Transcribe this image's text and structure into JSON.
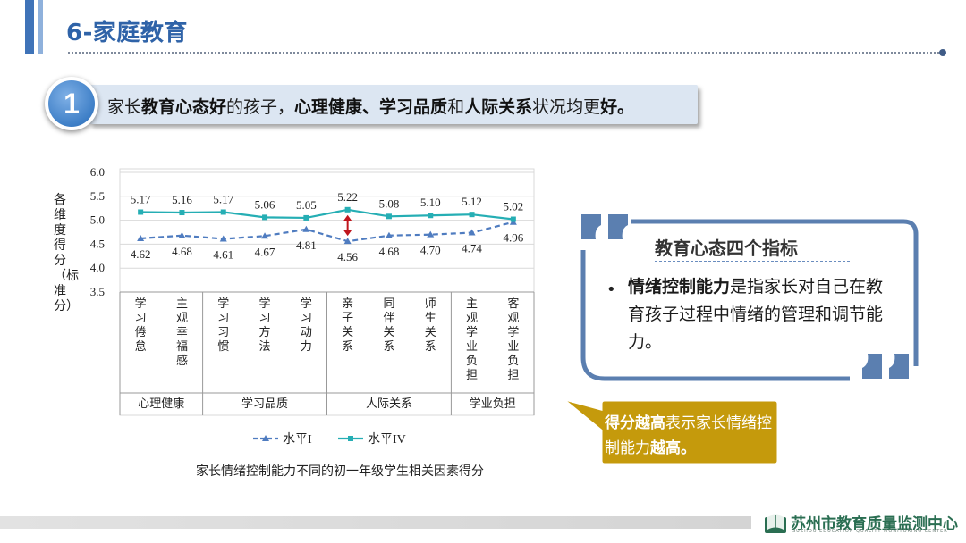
{
  "header": {
    "title": "6-家庭教育"
  },
  "point": {
    "number": "1",
    "parts": [
      {
        "t": "家长",
        "b": false
      },
      {
        "t": "教育心态好",
        "b": true
      },
      {
        "t": "的孩子，",
        "b": false
      },
      {
        "t": "心理健康、学习品质",
        "b": true
      },
      {
        "t": "和",
        "b": false
      },
      {
        "t": "人际关系",
        "b": true
      },
      {
        "t": "状况均更",
        "b": false
      },
      {
        "t": "好。",
        "b": true
      }
    ]
  },
  "chart_data": {
    "type": "line",
    "ylabel": "各维度得分（标准分）",
    "ylim": [
      3.5,
      6.0
    ],
    "yticks": [
      "6.0",
      "5.5",
      "5.0",
      "4.5",
      "4.0",
      "3.5"
    ],
    "categories": [
      "学习倦怠",
      "主观幸福感",
      "学习习惯",
      "学习方法",
      "学习动力",
      "亲子关系",
      "同伴关系",
      "师生关系",
      "主观学业负担",
      "客观学业负担"
    ],
    "groups": [
      {
        "label": "心理健康",
        "count": 2
      },
      {
        "label": "学习品质",
        "count": 3
      },
      {
        "label": "人际关系",
        "count": 3
      },
      {
        "label": "学业负担",
        "count": 2
      }
    ],
    "series": [
      {
        "name": "水平I",
        "values": [
          4.62,
          4.68,
          4.61,
          4.67,
          4.81,
          4.56,
          4.68,
          4.7,
          4.74,
          4.96
        ],
        "labels": [
          "4.62",
          "4.68",
          "4.61",
          "4.67",
          "4.81",
          "4.56",
          "4.68",
          "4.70",
          "4.74",
          "4.96"
        ],
        "color": "#4f7cc0",
        "dashed": true,
        "marker": "triangle"
      },
      {
        "name": "水平IV",
        "values": [
          5.17,
          5.16,
          5.17,
          5.06,
          5.05,
          5.22,
          5.08,
          5.1,
          5.12,
          5.02
        ],
        "labels": [
          "5.17",
          "5.16",
          "5.17",
          "5.06",
          "5.05",
          "5.22",
          "5.08",
          "5.10",
          "5.12",
          "5.02"
        ],
        "color": "#25aeb4",
        "dashed": false,
        "marker": "square"
      }
    ],
    "legend_position": "bottom",
    "caption": "家长情绪控制能力不同的初一年级学生相关因素得分",
    "highlight_category": "亲子关系",
    "arrow_color": "#c0161d"
  },
  "panel": {
    "title": "教育心态四个指标",
    "bullet": "•",
    "body_bold": "情绪控制能力",
    "body_rest": "是指家长对自己在教育孩子过程中情绪的管理和调节能力。",
    "frame_color": "#5b7fb0"
  },
  "callout": {
    "parts": [
      {
        "t": "得分越高",
        "b": true
      },
      {
        "t": "表示家长情绪控制能力",
        "b": false
      },
      {
        "t": "越高。",
        "b": true
      }
    ],
    "fill": "#c59a0c"
  },
  "footer": {
    "logo_text": "苏州市教育质量监测中心",
    "logo_sub": "SUZHOU EDUCATION QUALITY MONITORING CENTER"
  }
}
